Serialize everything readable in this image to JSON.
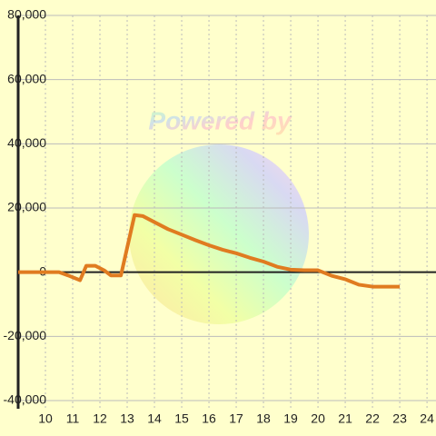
{
  "chart_data": {
    "type": "line",
    "watermark": "Powered by",
    "x": [
      9,
      10.5,
      10.83,
      11.27,
      11.5,
      11.83,
      12.17,
      12.4,
      12.77,
      13.27,
      13.57,
      14,
      14.5,
      15,
      15.5,
      16,
      16.5,
      17,
      17.5,
      18,
      18.5,
      19,
      19.5,
      20,
      20.5,
      21,
      21.5,
      22,
      23
    ],
    "series": [
      {
        "color": "#e07b20",
        "values": [
          0,
          0,
          -1000,
          -2500,
          2000,
          2000,
          500,
          -1000,
          -1000,
          17800,
          17500,
          15600,
          13400,
          11700,
          10000,
          8400,
          7000,
          5900,
          4500,
          3300,
          1700,
          800,
          600,
          600,
          -1100,
          -2200,
          -3900,
          -4500,
          -4500
        ]
      }
    ],
    "xlim": [
      9,
      24.33
    ],
    "xticks": [
      10,
      11,
      12,
      13,
      14,
      15,
      16,
      17,
      18,
      19,
      20,
      21,
      22,
      23,
      24
    ],
    "ylim": [
      -40000,
      80000
    ],
    "yticks": [
      {
        "value": -40000,
        "label": "-40,000"
      },
      {
        "value": -20000,
        "label": "-20,000"
      },
      0,
      {
        "value": 20000,
        "label": "20,000"
      },
      {
        "value": 40000,
        "label": "40,000"
      },
      {
        "value": 60000,
        "label": "60,000"
      },
      {
        "value": 80000,
        "label": "80,000"
      }
    ],
    "grid": true
  }
}
